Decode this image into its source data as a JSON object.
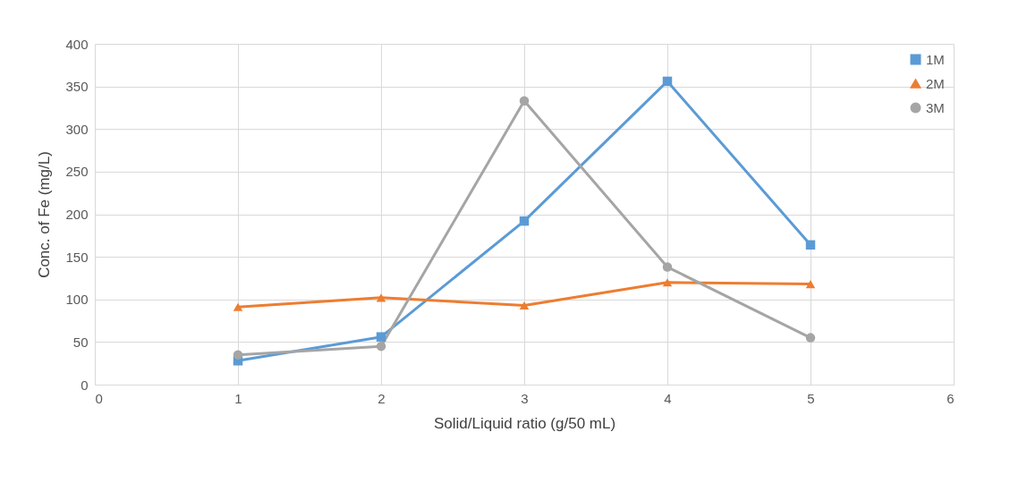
{
  "chart_data": {
    "type": "line",
    "xlabel": "Solid/Liquid ratio (g/50 mL)",
    "ylabel": "Conc. of Fe (mg/L)",
    "x": [
      1,
      2,
      3,
      4,
      5
    ],
    "series": [
      {
        "name": "1M",
        "color": "#5b9bd5",
        "marker": "square",
        "values": [
          28,
          56,
          192,
          356,
          164
        ]
      },
      {
        "name": "2M",
        "color": "#ed7d31",
        "marker": "triangle",
        "values": [
          91,
          102,
          93,
          120,
          118
        ]
      },
      {
        "name": "3M",
        "color": "#a5a5a5",
        "marker": "circle",
        "values": [
          35,
          45,
          333,
          138,
          55
        ]
      }
    ],
    "xlim": [
      0,
      6
    ],
    "xticks": [
      0,
      1,
      2,
      3,
      4,
      5,
      6
    ],
    "ylim": [
      0,
      400
    ],
    "yticks": [
      0,
      50,
      100,
      150,
      200,
      250,
      300,
      350,
      400
    ],
    "grid": true,
    "legend": "top right"
  }
}
